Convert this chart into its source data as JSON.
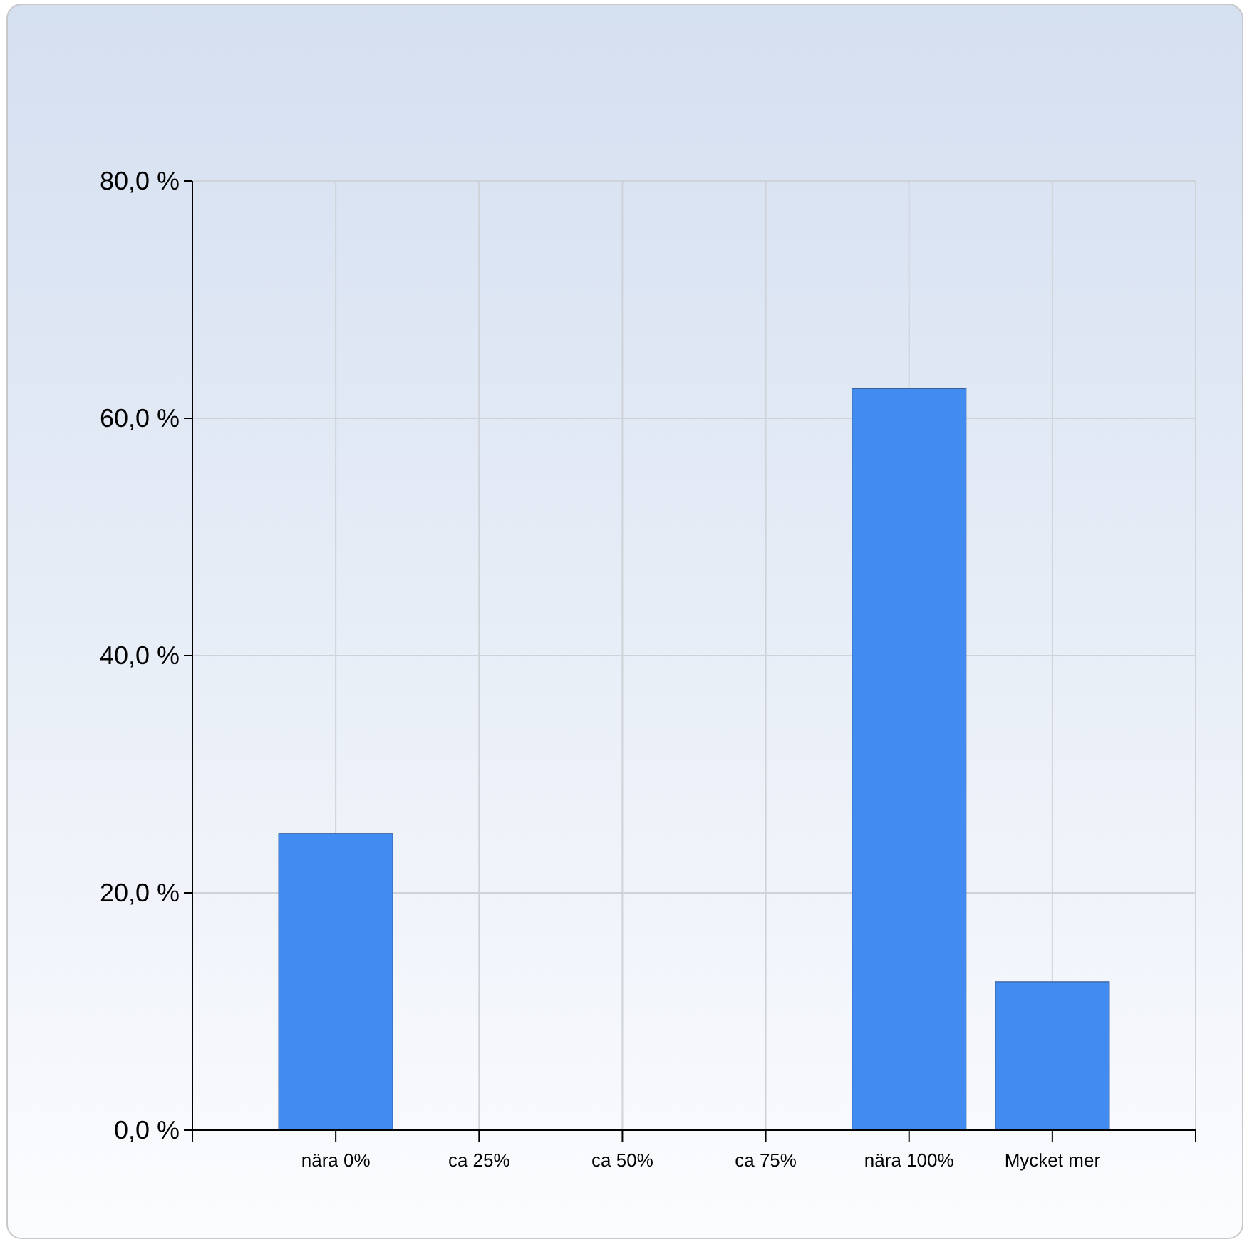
{
  "chart_data": {
    "type": "bar",
    "categories": [
      null,
      "nära 0%",
      "ca 25%",
      "ca 50%",
      "ca 75%",
      "nära 100%",
      "Mycket mer",
      null
    ],
    "values": [
      null,
      25,
      0,
      0,
      0,
      62.5,
      12.5,
      null
    ],
    "color": "#428bf0",
    "ylim": [
      0,
      80
    ],
    "yticks": [
      {
        "value": 0,
        "label": "0,0 %"
      },
      {
        "value": 20,
        "label": "20,0 %"
      },
      {
        "value": 40,
        "label": "40,0 %"
      },
      {
        "value": 60,
        "label": "60,0 %"
      },
      {
        "value": 80,
        "label": "80,0 %"
      }
    ],
    "grid": true
  }
}
